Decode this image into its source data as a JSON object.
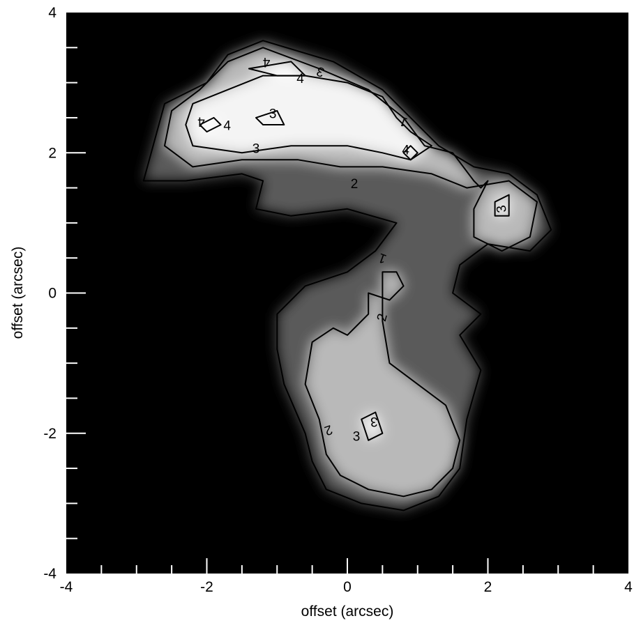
{
  "chart_data": {
    "type": "heatmap",
    "xlabel": "offset (arcsec)",
    "ylabel": "offset (arcsec)",
    "xlim": [
      -4,
      4
    ],
    "ylim": [
      -4,
      4
    ],
    "x_ticks": [
      {
        "value": -4,
        "label": "-4"
      },
      {
        "value": -2,
        "label": "-2"
      },
      {
        "value": 0,
        "label": "0"
      },
      {
        "value": 2,
        "label": "2"
      },
      {
        "value": 4,
        "label": "4"
      }
    ],
    "y_ticks": [
      {
        "value": -4,
        "label": "-4"
      },
      {
        "value": -2,
        "label": "-2"
      },
      {
        "value": 0,
        "label": "0"
      },
      {
        "value": 2,
        "label": "2"
      },
      {
        "value": 4,
        "label": "4"
      }
    ],
    "minor_tick_step": 0.5,
    "colormap": "grayscale",
    "background_color": "#000000",
    "contour_color": "#000000",
    "contour_levels": [
      1,
      2,
      3,
      4
    ],
    "contours": [
      {
        "level": 1,
        "points": [
          [
            -2.9,
            1.6
          ],
          [
            -2.6,
            2.7
          ],
          [
            -2.0,
            3.0
          ],
          [
            -1.7,
            3.4
          ],
          [
            -1.2,
            3.6
          ],
          [
            -0.2,
            3.3
          ],
          [
            0.5,
            2.9
          ],
          [
            0.9,
            2.5
          ],
          [
            1.3,
            2.1
          ],
          [
            1.8,
            1.8
          ],
          [
            2.3,
            1.7
          ],
          [
            2.7,
            1.4
          ],
          [
            2.9,
            0.9
          ],
          [
            2.6,
            0.6
          ],
          [
            2.0,
            0.7
          ],
          [
            1.6,
            0.4
          ],
          [
            1.5,
            0.0
          ],
          [
            1.9,
            -0.3
          ],
          [
            1.6,
            -0.6
          ],
          [
            1.9,
            -1.1
          ],
          [
            1.7,
            -1.8
          ],
          [
            1.6,
            -2.5
          ],
          [
            1.3,
            -2.9
          ],
          [
            0.8,
            -3.1
          ],
          [
            0.2,
            -3.0
          ],
          [
            -0.3,
            -2.8
          ],
          [
            -0.5,
            -2.4
          ],
          [
            -0.6,
            -2.0
          ],
          [
            -0.9,
            -1.3
          ],
          [
            -1.0,
            -0.8
          ],
          [
            -1.0,
            -0.3
          ],
          [
            -0.6,
            0.1
          ],
          [
            0.0,
            0.3
          ],
          [
            0.4,
            0.6
          ],
          [
            0.7,
            1.0
          ],
          [
            0.0,
            1.2
          ],
          [
            -0.8,
            1.1
          ],
          [
            -1.3,
            1.2
          ],
          [
            -1.2,
            1.6
          ],
          [
            -1.5,
            1.7
          ],
          [
            -2.3,
            1.6
          ],
          [
            -2.9,
            1.6
          ]
        ]
      },
      {
        "level": 2,
        "points": [
          [
            -2.6,
            2.1
          ],
          [
            -2.5,
            2.6
          ],
          [
            -2.1,
            2.9
          ],
          [
            -1.7,
            3.3
          ],
          [
            -1.2,
            3.5
          ],
          [
            -0.4,
            3.2
          ],
          [
            0.3,
            2.9
          ],
          [
            0.8,
            2.5
          ],
          [
            1.1,
            2.1
          ],
          [
            1.5,
            2.0
          ],
          [
            1.8,
            1.6
          ],
          [
            1.9,
            1.5
          ],
          [
            2.0,
            1.6
          ],
          [
            1.8,
            1.2
          ],
          [
            1.8,
            0.8
          ],
          [
            2.2,
            0.6
          ],
          [
            2.6,
            0.8
          ],
          [
            2.7,
            1.3
          ],
          [
            2.3,
            1.6
          ],
          [
            1.7,
            1.5
          ],
          [
            1.2,
            1.7
          ],
          [
            0.5,
            1.8
          ],
          [
            -0.1,
            1.8
          ],
          [
            -0.7,
            1.9
          ],
          [
            -1.5,
            1.9
          ],
          [
            -2.2,
            1.8
          ],
          [
            -2.6,
            2.1
          ]
        ]
      },
      {
        "level": 2,
        "points": [
          [
            0.3,
            0.0
          ],
          [
            0.6,
            -0.1
          ],
          [
            0.8,
            0.1
          ],
          [
            0.7,
            0.3
          ],
          [
            0.5,
            0.3
          ],
          [
            0.5,
            -0.4
          ],
          [
            0.6,
            -1.0
          ],
          [
            1.0,
            -1.3
          ],
          [
            1.4,
            -1.6
          ],
          [
            1.6,
            -2.1
          ],
          [
            1.5,
            -2.5
          ],
          [
            1.2,
            -2.8
          ],
          [
            0.8,
            -2.9
          ],
          [
            0.3,
            -2.8
          ],
          [
            -0.1,
            -2.6
          ],
          [
            -0.3,
            -2.3
          ],
          [
            -0.4,
            -1.8
          ],
          [
            -0.6,
            -1.3
          ],
          [
            -0.5,
            -0.7
          ],
          [
            -0.2,
            -0.5
          ],
          [
            0.0,
            -0.6
          ],
          [
            0.3,
            -0.3
          ],
          [
            0.3,
            0.0
          ]
        ]
      },
      {
        "level": 3,
        "points": [
          [
            -2.3,
            2.4
          ],
          [
            -2.2,
            2.7
          ],
          [
            -1.7,
            2.9
          ],
          [
            -1.2,
            3.1
          ],
          [
            -0.6,
            3.1
          ],
          [
            0.0,
            3.0
          ],
          [
            0.5,
            2.8
          ],
          [
            0.7,
            2.5
          ],
          [
            0.9,
            2.3
          ],
          [
            1.2,
            2.1
          ],
          [
            0.9,
            1.9
          ],
          [
            0.5,
            2.0
          ],
          [
            0.0,
            2.1
          ],
          [
            -0.8,
            2.1
          ],
          [
            -1.5,
            2.0
          ],
          [
            -2.2,
            2.1
          ],
          [
            -2.3,
            2.4
          ]
        ]
      },
      {
        "level": 3,
        "points": [
          [
            -1.3,
            2.5
          ],
          [
            -1.0,
            2.6
          ],
          [
            -0.9,
            2.4
          ],
          [
            -1.2,
            2.4
          ],
          [
            -1.3,
            2.5
          ]
        ]
      },
      {
        "level": 3,
        "points": [
          [
            2.1,
            1.3
          ],
          [
            2.3,
            1.4
          ],
          [
            2.3,
            1.1
          ],
          [
            2.1,
            1.1
          ],
          [
            2.1,
            1.3
          ]
        ]
      },
      {
        "level": 3,
        "points": [
          [
            0.2,
            -1.8
          ],
          [
            0.4,
            -1.7
          ],
          [
            0.5,
            -2.0
          ],
          [
            0.3,
            -2.1
          ],
          [
            0.2,
            -1.8
          ]
        ]
      },
      {
        "level": 4,
        "points": [
          [
            -2.1,
            2.4
          ],
          [
            -1.9,
            2.5
          ],
          [
            -1.8,
            2.4
          ],
          [
            -2.0,
            2.3
          ],
          [
            -2.1,
            2.4
          ]
        ]
      },
      {
        "level": 4,
        "points": [
          [
            -1.4,
            3.2
          ],
          [
            -0.8,
            3.3
          ],
          [
            -0.6,
            3.1
          ],
          [
            -1.0,
            3.1
          ],
          [
            -1.4,
            3.2
          ]
        ]
      },
      {
        "level": 4,
        "points": [
          [
            0.9,
            2.1
          ],
          [
            1.0,
            2.0
          ],
          [
            0.9,
            1.9
          ],
          [
            0.8,
            2.0
          ],
          [
            0.9,
            2.1
          ]
        ]
      }
    ],
    "contour_labels": [
      {
        "text": "1",
        "x": 0.8,
        "y": 2.45,
        "rotate": 200
      },
      {
        "text": "1",
        "x": 0.5,
        "y": 0.5,
        "rotate": 200
      },
      {
        "text": "2",
        "x": 0.1,
        "y": 1.55,
        "rotate": 0
      },
      {
        "text": "2",
        "x": 0.5,
        "y": -0.35,
        "rotate": -75
      },
      {
        "text": "2",
        "x": -0.27,
        "y": -1.95,
        "rotate": 160
      },
      {
        "text": "3",
        "x": -1.3,
        "y": 2.05,
        "rotate": 0
      },
      {
        "text": "3",
        "x": -1.06,
        "y": 2.55,
        "rotate": 0
      },
      {
        "text": "3",
        "x": -0.38,
        "y": 3.16,
        "rotate": 200
      },
      {
        "text": "3",
        "x": 2.2,
        "y": 1.2,
        "rotate": -100
      },
      {
        "text": "3",
        "x": 0.38,
        "y": -1.83,
        "rotate": 180
      },
      {
        "text": "3",
        "x": 0.13,
        "y": -2.05,
        "rotate": 0
      },
      {
        "text": "4",
        "x": -2.08,
        "y": 2.45,
        "rotate": 180
      },
      {
        "text": "4",
        "x": -1.71,
        "y": 2.38,
        "rotate": 0
      },
      {
        "text": "4",
        "x": -1.15,
        "y": 3.3,
        "rotate": 180
      },
      {
        "text": "4",
        "x": -0.67,
        "y": 3.05,
        "rotate": 0
      },
      {
        "text": "4",
        "x": 0.83,
        "y": 2.03,
        "rotate": 0
      }
    ]
  }
}
